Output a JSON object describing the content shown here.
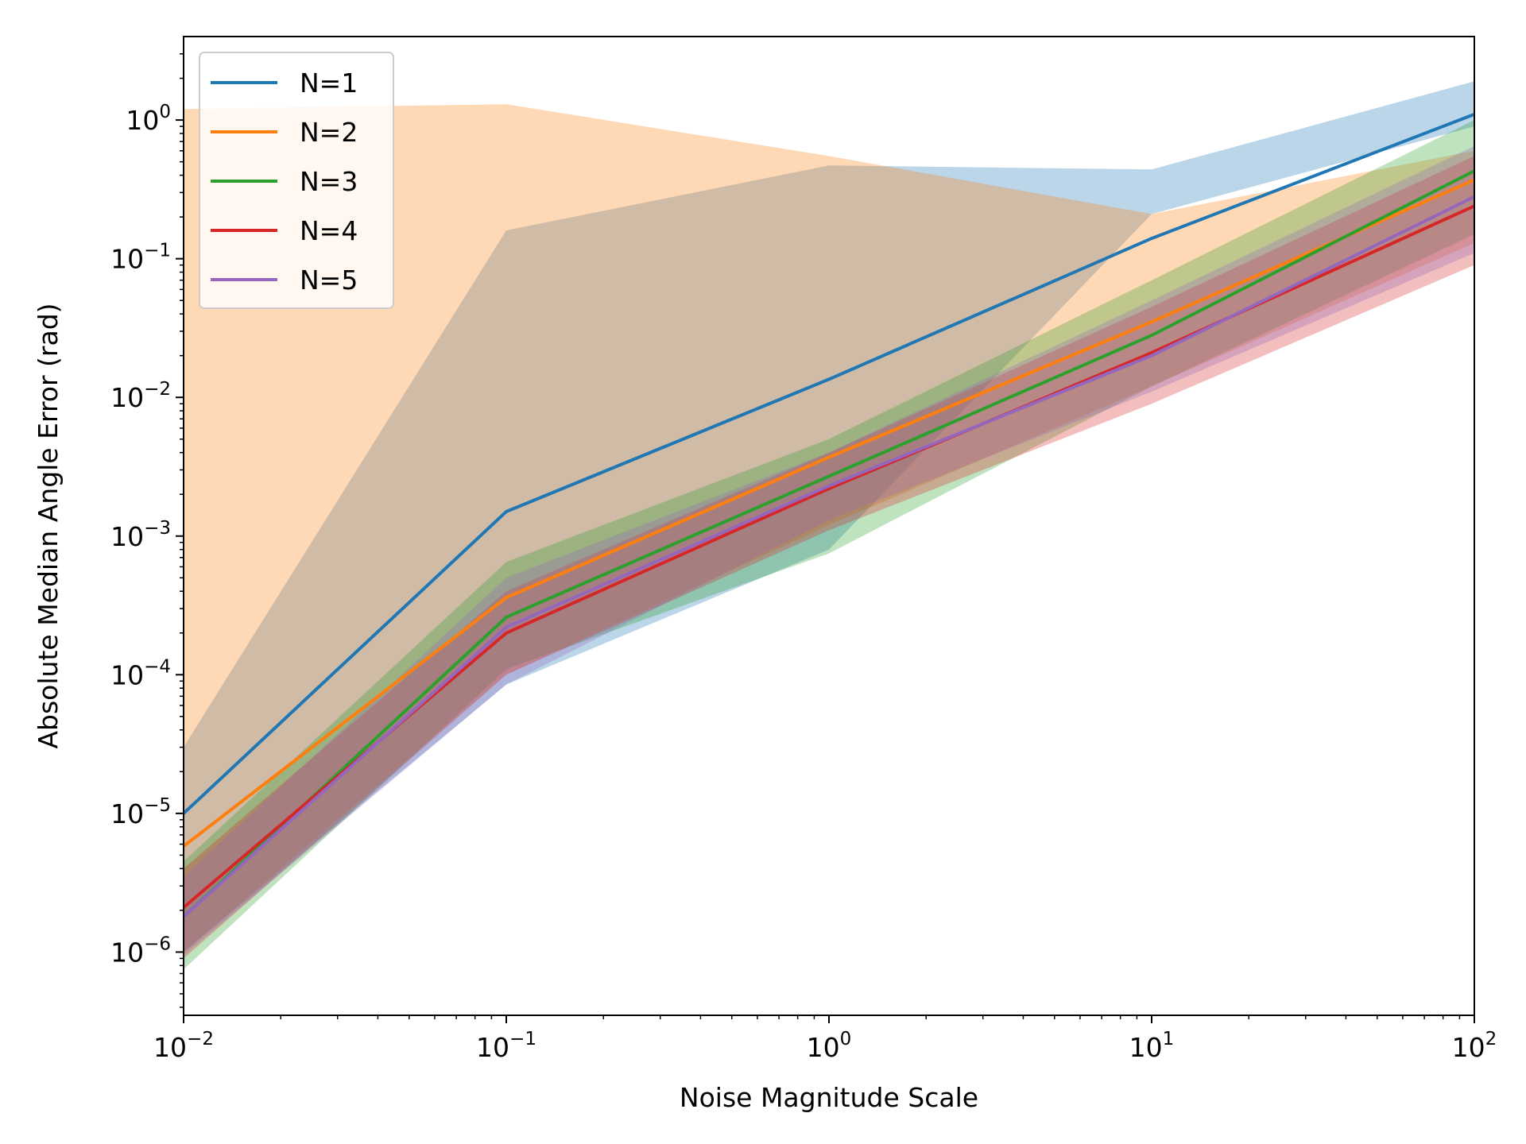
{
  "chart_data": {
    "type": "line",
    "xlabel": "Noise Magnitude Scale",
    "ylabel": "Absolute Median Angle Error (rad)",
    "xscale": "log",
    "yscale": "log",
    "xlim": [
      0.01,
      100
    ],
    "ylim": [
      3.5e-07,
      4.0
    ],
    "xticks": [
      {
        "value": 0.01,
        "base": "10",
        "exp": "−2"
      },
      {
        "value": 0.1,
        "base": "10",
        "exp": "−1"
      },
      {
        "value": 1,
        "base": "10",
        "exp": "0"
      },
      {
        "value": 10,
        "base": "10",
        "exp": "1"
      },
      {
        "value": 100,
        "base": "10",
        "exp": "2"
      }
    ],
    "yticks": [
      {
        "value": 1e-06,
        "base": "10",
        "exp": "−6"
      },
      {
        "value": 1e-05,
        "base": "10",
        "exp": "−5"
      },
      {
        "value": 0.0001,
        "base": "10",
        "exp": "−4"
      },
      {
        "value": 0.001,
        "base": "10",
        "exp": "−3"
      },
      {
        "value": 0.01,
        "base": "10",
        "exp": "−2"
      },
      {
        "value": 0.1,
        "base": "10",
        "exp": "−1"
      },
      {
        "value": 1,
        "base": "10",
        "exp": "0"
      }
    ],
    "grid": false,
    "legend_position": "top-left",
    "x": [
      0.01,
      0.1,
      1,
      10,
      100
    ],
    "series": [
      {
        "name": "N=1",
        "color": "#1f77b4",
        "values": [
          1e-05,
          0.0015,
          0.0135,
          0.14,
          1.1
        ],
        "band_lower": [
          1e-06,
          8.5e-05,
          0.0008,
          0.21,
          0.9
        ],
        "band_upper": [
          3e-05,
          0.16,
          0.47,
          0.44,
          1.9
        ]
      },
      {
        "name": "N=2",
        "color": "#ff7f0e",
        "values": [
          5.8e-06,
          0.00036,
          0.0037,
          0.035,
          0.37
        ],
        "band_lower": [
          1e-06,
          0.0001,
          0.0012,
          0.012,
          0.13
        ],
        "band_upper": [
          1.2,
          1.3,
          0.55,
          0.21,
          0.6
        ]
      },
      {
        "name": "N=3",
        "color": "#2ca02c",
        "values": [
          1.8e-06,
          0.00026,
          0.0027,
          0.028,
          0.43
        ],
        "band_lower": [
          7.5e-07,
          0.00011,
          0.00075,
          0.012,
          0.15
        ],
        "band_upper": [
          4.5e-06,
          0.00065,
          0.005,
          0.07,
          1.0
        ]
      },
      {
        "name": "N=4",
        "color": "#d62728",
        "values": [
          2.1e-06,
          0.0002,
          0.0022,
          0.021,
          0.24
        ],
        "band_lower": [
          9e-07,
          0.0001,
          0.0011,
          0.009,
          0.09
        ],
        "band_upper": [
          4e-06,
          0.0004,
          0.004,
          0.045,
          0.55
        ]
      },
      {
        "name": "N=5",
        "color": "#9467bd",
        "values": [
          1.8e-06,
          0.00022,
          0.0023,
          0.02,
          0.28
        ],
        "band_lower": [
          9.5e-07,
          8.5e-05,
          0.0013,
          0.011,
          0.11
        ],
        "band_upper": [
          3.5e-06,
          0.0005,
          0.004,
          0.05,
          0.65
        ]
      }
    ],
    "band_alpha": 0.3
  }
}
